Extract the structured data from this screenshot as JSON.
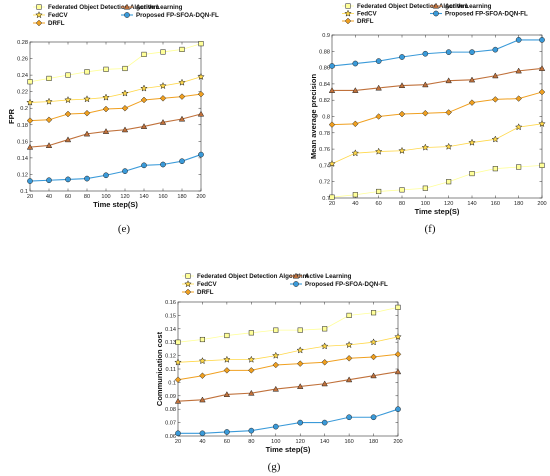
{
  "colors": {
    "federated": "#ffff99",
    "active": "#c0713b",
    "fedcv": "#ffd84a",
    "drfl": "#f0a020",
    "proposed": "#3a9ad9"
  },
  "chart_data": [
    {
      "type": "line",
      "panel_label": "(e)",
      "xlabel": "Time step(S)",
      "ylabel": "FPR",
      "x": [
        20,
        40,
        60,
        80,
        100,
        120,
        140,
        160,
        180,
        200
      ],
      "xlim": [
        20,
        200
      ],
      "ylim": [
        0.1,
        0.28
      ],
      "yticks": [
        0.1,
        0.12,
        0.14,
        0.16,
        0.18,
        0.2,
        0.22,
        0.24,
        0.26,
        0.28
      ],
      "ytick_labels": [
        "0.1",
        "0.12",
        "0.14",
        "0.16",
        "0.18",
        "0.2",
        "0.22",
        "0.24",
        "0.26",
        "0.28"
      ],
      "grid": false,
      "legend": "top",
      "series": [
        {
          "name": "Federated Object Detection Algorithm",
          "values": [
            0.232,
            0.236,
            0.24,
            0.244,
            0.247,
            0.248,
            0.265,
            0.268,
            0.271,
            0.278
          ]
        },
        {
          "name": "FedCV",
          "values": [
            0.207,
            0.208,
            0.21,
            0.211,
            0.213,
            0.218,
            0.224,
            0.227,
            0.231,
            0.238
          ]
        },
        {
          "name": "DRFL",
          "values": [
            0.185,
            0.186,
            0.193,
            0.194,
            0.199,
            0.2,
            0.21,
            0.212,
            0.214,
            0.217
          ]
        },
        {
          "name": "Active Learning",
          "values": [
            0.153,
            0.155,
            0.162,
            0.169,
            0.172,
            0.174,
            0.178,
            0.183,
            0.187,
            0.193
          ]
        },
        {
          "name": "Proposed FP-SFOA-DQN-FL",
          "values": [
            0.112,
            0.113,
            0.114,
            0.115,
            0.119,
            0.124,
            0.131,
            0.132,
            0.136,
            0.144
          ]
        }
      ]
    },
    {
      "type": "line",
      "panel_label": "(f)",
      "xlabel": "Time step(S)",
      "ylabel": "Mean average precision",
      "x": [
        20,
        40,
        60,
        80,
        100,
        120,
        140,
        160,
        180,
        200
      ],
      "xlim": [
        20,
        200
      ],
      "ylim": [
        0.7,
        0.9
      ],
      "yticks": [
        0.7,
        0.72,
        0.74,
        0.76,
        0.78,
        0.8,
        0.82,
        0.84,
        0.86,
        0.88,
        0.9
      ],
      "ytick_labels": [
        "0.7",
        "0.72",
        "0.74",
        "0.76",
        "0.78",
        "0.8",
        "0.82",
        "0.84",
        "0.86",
        "0.88",
        "0.9"
      ],
      "grid": false,
      "legend": "top",
      "series": [
        {
          "name": "Federated Object Detection Algorithm",
          "values": [
            0.701,
            0.704,
            0.708,
            0.71,
            0.712,
            0.72,
            0.73,
            0.736,
            0.738,
            0.74
          ]
        },
        {
          "name": "FedCV",
          "values": [
            0.742,
            0.755,
            0.757,
            0.758,
            0.762,
            0.763,
            0.768,
            0.772,
            0.787,
            0.791
          ]
        },
        {
          "name": "DRFL",
          "values": [
            0.79,
            0.791,
            0.8,
            0.803,
            0.804,
            0.805,
            0.817,
            0.821,
            0.822,
            0.83
          ]
        },
        {
          "name": "Active Learning",
          "values": [
            0.832,
            0.832,
            0.835,
            0.838,
            0.839,
            0.844,
            0.845,
            0.85,
            0.856,
            0.859
          ]
        },
        {
          "name": "Proposed FP-SFOA-DQN-FL",
          "values": [
            0.862,
            0.865,
            0.868,
            0.873,
            0.877,
            0.879,
            0.879,
            0.882,
            0.894,
            0.894
          ]
        }
      ]
    },
    {
      "type": "line",
      "panel_label": "(g)",
      "xlabel": "Time step(S)",
      "ylabel": "Communication cost",
      "x": [
        20,
        40,
        60,
        80,
        100,
        120,
        140,
        160,
        180,
        200
      ],
      "xlim": [
        20,
        200
      ],
      "ylim": [
        0.06,
        0.16
      ],
      "yticks": [
        0.06,
        0.07,
        0.08,
        0.09,
        0.1,
        0.11,
        0.12,
        0.13,
        0.14,
        0.15,
        0.16
      ],
      "ytick_labels": [
        "0.06",
        "0.07",
        "0.08",
        "0.09",
        "0.1",
        "0.11",
        "0.12",
        "0.13",
        "0.14",
        "0.15",
        "0.16"
      ],
      "grid": false,
      "legend": "top",
      "series": [
        {
          "name": "Federated Object Detection Algorithm",
          "values": [
            0.13,
            0.132,
            0.135,
            0.137,
            0.139,
            0.139,
            0.14,
            0.15,
            0.152,
            0.156
          ]
        },
        {
          "name": "FedCV",
          "values": [
            0.115,
            0.116,
            0.117,
            0.117,
            0.12,
            0.124,
            0.127,
            0.128,
            0.13,
            0.134
          ]
        },
        {
          "name": "DRFL",
          "values": [
            0.102,
            0.105,
            0.109,
            0.109,
            0.113,
            0.114,
            0.115,
            0.118,
            0.119,
            0.121
          ]
        },
        {
          "name": "Active Learning",
          "values": [
            0.086,
            0.087,
            0.091,
            0.092,
            0.095,
            0.097,
            0.099,
            0.102,
            0.105,
            0.108
          ]
        },
        {
          "name": "Proposed FP-SFOA-DQN-FL",
          "values": [
            0.062,
            0.062,
            0.063,
            0.064,
            0.067,
            0.07,
            0.07,
            0.074,
            0.074,
            0.08
          ]
        }
      ]
    }
  ]
}
